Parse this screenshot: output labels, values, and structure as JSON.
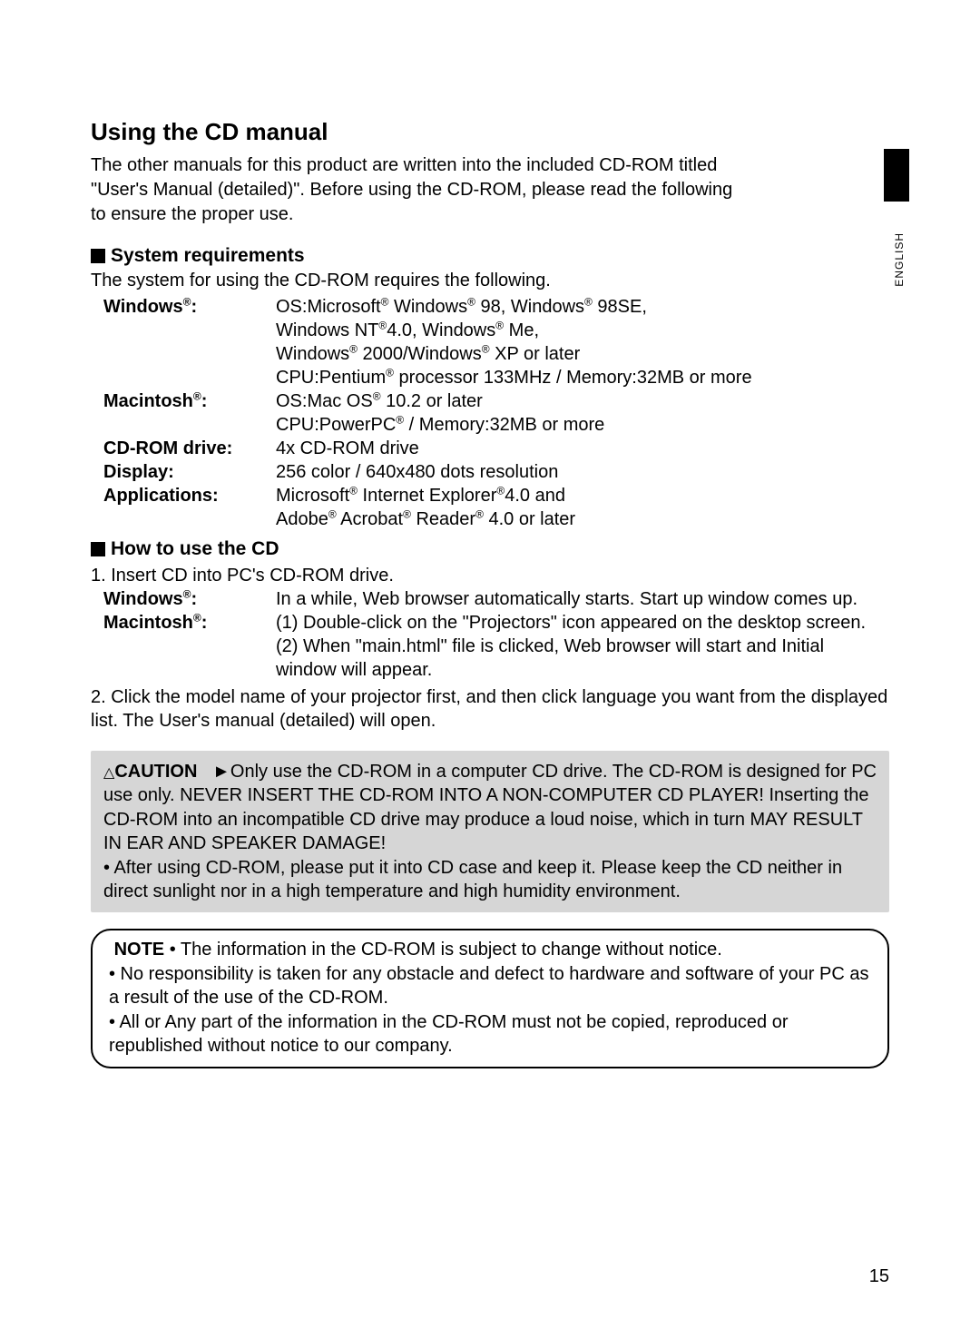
{
  "vertical_label": "ENGLISH",
  "title": "Using the CD manual",
  "intro": "The other manuals for this product are written into the included CD-ROM titled \"User's Manual (detailed)\". Before using the CD-ROM, please read the following to ensure the proper use.",
  "sys_req_head": "System requirements",
  "sys_req_intro": "The system for using the CD-ROM requires the following.",
  "requirements": [
    {
      "label": "Windows®:",
      "lines": [
        "OS:Microsoft® Windows® 98, Windows® 98SE,",
        "Windows NT®4.0, Windows® Me,",
        "Windows® 2000/Windows® XP or later",
        "CPU:Pentium® processor 133MHz / Memory:32MB or more"
      ]
    },
    {
      "label": "Macintosh®:",
      "lines": [
        "OS:Mac OS® 10.2 or later",
        "CPU:PowerPC® / Memory:32MB or more"
      ]
    },
    {
      "label": "CD-ROM drive:",
      "lines": [
        "4x CD-ROM drive"
      ]
    },
    {
      "label": "Display:",
      "lines": [
        "256 color / 640x480 dots resolution"
      ]
    },
    {
      "label": "Applications:",
      "lines": [
        "Microsoft® Internet Explorer®4.0 and",
        "Adobe® Acrobat® Reader® 4.0 or later"
      ]
    }
  ],
  "howto_head": "How to use the CD",
  "howto_1": "1. Insert CD into PC's CD-ROM drive.",
  "howto_win_label": "Windows®:",
  "howto_win_value": "In a while, Web browser automatically starts. Start up window comes up.",
  "howto_mac_label": "Macintosh®:",
  "howto_mac_v1": "(1) Double-click on the \"Projectors\" icon appeared on the desktop screen.",
  "howto_mac_v2": "(2) When \"main.html\" file is clicked, Web browser will start and Initial window will appear.",
  "howto_2": "2. Click the model name of your projector first, and then click language you want from the displayed list. The User's manual (detailed) will open.",
  "caution_label": "CAUTION",
  "caution_body1": "Only use the CD-ROM in a computer CD drive. The CD-ROM is designed for PC use only. NEVER INSERT THE CD-ROM INTO A NON-COMPUTER CD PLAYER! Inserting the CD-ROM into an incompatible CD drive may produce a loud noise, which in turn MAY RESULT IN EAR AND SPEAKER DAMAGE!",
  "caution_body2": "• After using CD-ROM, please put it into CD case and keep it. Please keep the CD neither in direct sunlight nor in a high temperature and high humidity environment.",
  "note_label": "NOTE",
  "note_body1": "• The information in the CD-ROM is subject to change without notice.",
  "note_body2": "• No responsibility is taken for any obstacle and defect to hardware and software of your PC as a result of the use of the CD-ROM.",
  "note_body3": "• All or Any part of the information in the CD-ROM must not be copied, reproduced or republished without notice to our company.",
  "page_number": "15"
}
